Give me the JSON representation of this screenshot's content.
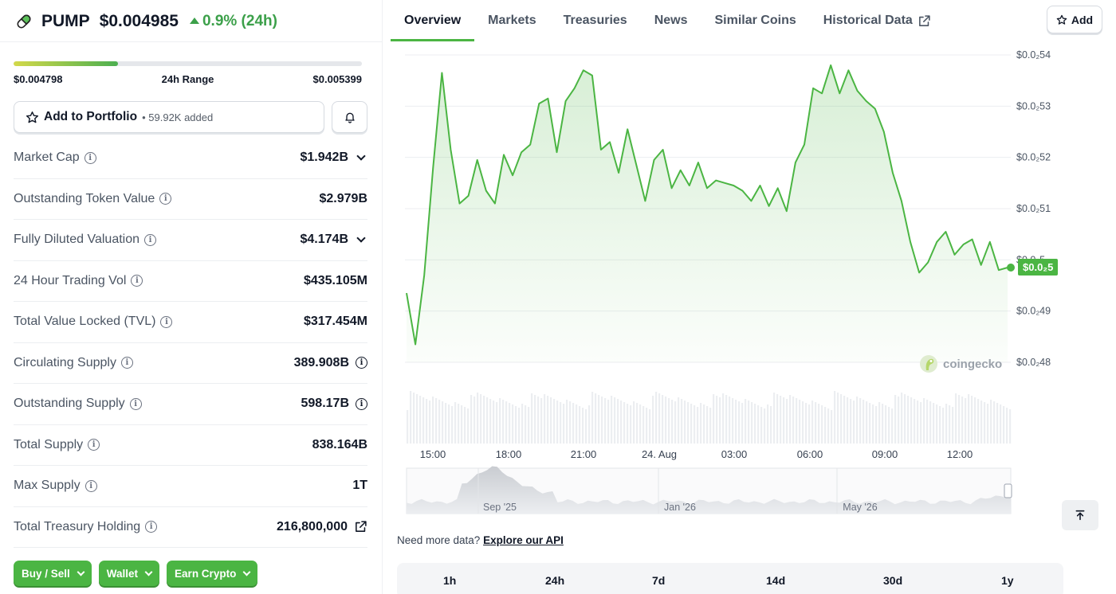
{
  "coin": {
    "symbol": "PUMP",
    "price": "$0.004985",
    "change": "0.9% (24h)",
    "icon": "pill-icon"
  },
  "range": {
    "low": "$0.004798",
    "label": "24h Range",
    "high": "$0.005399",
    "fill_fraction": 0.3
  },
  "portfolio": {
    "label": "Add to Portfolio",
    "added": "59.92K added"
  },
  "stats": [
    {
      "label": "Market Cap",
      "value": "$1.942B",
      "suffix": "chevron"
    },
    {
      "label": "Outstanding Token Value",
      "value": "$2.979B",
      "suffix": ""
    },
    {
      "label": "Fully Diluted Valuation",
      "value": "$4.174B",
      "suffix": "chevron"
    },
    {
      "label": "24 Hour Trading Vol",
      "value": "$435.105M",
      "suffix": ""
    },
    {
      "label": "Total Value Locked (TVL)",
      "value": "$317.454M",
      "suffix": ""
    },
    {
      "label": "Circulating Supply",
      "value": "389.908B",
      "suffix": "info"
    },
    {
      "label": "Outstanding Supply",
      "value": "598.17B",
      "suffix": "info"
    },
    {
      "label": "Total Supply",
      "value": "838.164B",
      "suffix": ""
    },
    {
      "label": "Max Supply",
      "value": "1T",
      "suffix": ""
    },
    {
      "label": "Total Treasury Holding",
      "value": "216,800,000",
      "suffix": "external"
    }
  ],
  "actions": [
    "Buy / Sell",
    "Wallet",
    "Earn Crypto"
  ],
  "tabs": [
    "Overview",
    "Markets",
    "Treasuries",
    "News",
    "Similar Coins",
    "Historical Data"
  ],
  "active_tab": "Overview",
  "add_button": "Add",
  "chart": {
    "y_ticks": [
      "$0.0₂54",
      "$0.0₂53",
      "$0.0₂52",
      "$0.0₂51",
      "$0.0₂5",
      "$0.0₂49",
      "$0.0₂48"
    ],
    "x_ticks": [
      "15:00",
      "18:00",
      "21:00",
      "24. Aug",
      "03:00",
      "06:00",
      "09:00",
      "12:00"
    ],
    "nav_ticks": [
      "Sep '25",
      "Jan '26",
      "May '26"
    ],
    "current_label": "$0.0₂5",
    "watermark": "coingecko",
    "line_color": "#4bb543"
  },
  "chart_data": {
    "type": "area",
    "title": "",
    "xlabel": "",
    "ylabel": "",
    "x": [
      "14:10",
      "14:40",
      "15:00",
      "15:20",
      "15:40",
      "16:00",
      "16:20",
      "16:40",
      "17:00",
      "17:20",
      "17:40",
      "18:00",
      "18:20",
      "18:40",
      "19:00",
      "19:20",
      "19:40",
      "20:00",
      "20:20",
      "20:40",
      "21:00",
      "21:20",
      "21:40",
      "22:00",
      "22:20",
      "22:40",
      "23:00",
      "23:20",
      "23:40",
      "00:00",
      "00:20",
      "00:40",
      "01:00",
      "01:20",
      "01:40",
      "02:00",
      "02:20",
      "02:40",
      "03:00",
      "03:20",
      "03:40",
      "04:00",
      "04:20",
      "04:40",
      "05:00",
      "05:20",
      "05:40",
      "06:00",
      "06:20",
      "06:40",
      "07:00",
      "07:20",
      "07:40",
      "08:00",
      "08:20",
      "08:40",
      "09:00",
      "09:20",
      "09:40",
      "10:00",
      "10:20",
      "10:40",
      "11:00",
      "11:20",
      "11:40",
      "12:00",
      "12:20",
      "12:40",
      "13:00"
    ],
    "series": [
      {
        "values": [
          0.004935,
          0.004835,
          0.00497,
          0.00518,
          0.005365,
          0.005215,
          0.00511,
          0.005125,
          0.005195,
          0.005135,
          0.00511,
          0.005205,
          0.005165,
          0.00521,
          0.005225,
          0.005305,
          0.005315,
          0.00521,
          0.00531,
          0.005335,
          0.00537,
          0.00536,
          0.005215,
          0.00523,
          0.00517,
          0.005255,
          0.005185,
          0.005115,
          0.005195,
          0.005215,
          0.00514,
          0.005175,
          0.005145,
          0.00519,
          0.00514,
          0.005155,
          0.00515,
          0.005145,
          0.005135,
          0.005115,
          0.005145,
          0.005105,
          0.00514,
          0.005095,
          0.00519,
          0.005225,
          0.005335,
          0.005325,
          0.00538,
          0.005325,
          0.00537,
          0.00533,
          0.00531,
          0.005295,
          0.00525,
          0.00517,
          0.005115,
          0.005035,
          0.004975,
          0.004995,
          0.005035,
          0.005055,
          0.00501,
          0.00503,
          0.00504,
          0.00499,
          0.005035,
          0.00498,
          0.004985
        ]
      }
    ],
    "ylim": [
      0.00477,
      0.00541
    ],
    "grid": true
  }
}
